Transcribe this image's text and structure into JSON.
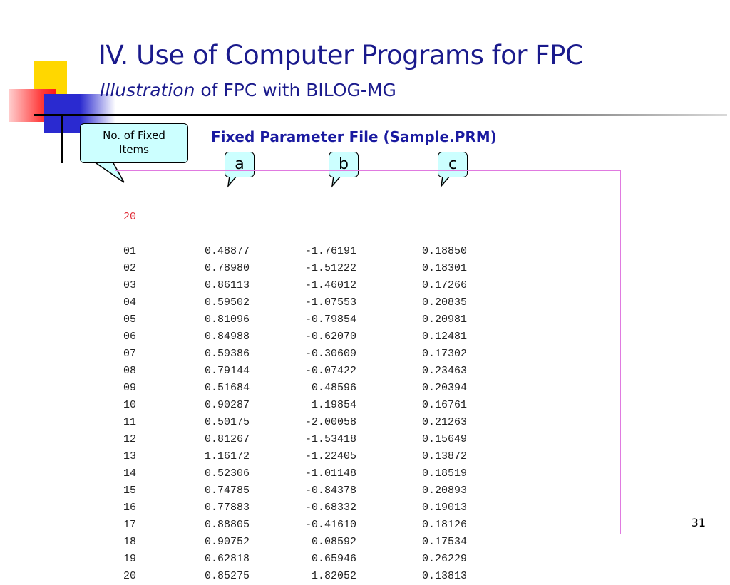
{
  "slide": {
    "title": "IV. Use of Computer Programs for FPC",
    "subtitle_prefix": "Illustration",
    "subtitle_rest": " of FPC with BILOG-MG",
    "page_number": "31",
    "accent_color": "#1a1a8c"
  },
  "file_heading": "Fixed Parameter File (Sample.PRM)",
  "callouts": {
    "fixed_items_line1": "No. of Fixed",
    "fixed_items_line2": "Items",
    "a": "a",
    "b": "b",
    "c": "c"
  },
  "prm": {
    "count": "20",
    "rows": [
      {
        "id": "01",
        "a": "0.48877",
        "b": "-1.76191",
        "c": "0.18850"
      },
      {
        "id": "02",
        "a": "0.78980",
        "b": "-1.51222",
        "c": "0.18301"
      },
      {
        "id": "03",
        "a": "0.86113",
        "b": "-1.46012",
        "c": "0.17266"
      },
      {
        "id": "04",
        "a": "0.59502",
        "b": "-1.07553",
        "c": "0.20835"
      },
      {
        "id": "05",
        "a": "0.81096",
        "b": "-0.79854",
        "c": "0.20981"
      },
      {
        "id": "06",
        "a": "0.84988",
        "b": "-0.62070",
        "c": "0.12481"
      },
      {
        "id": "07",
        "a": "0.59386",
        "b": "-0.30609",
        "c": "0.17302"
      },
      {
        "id": "08",
        "a": "0.79144",
        "b": "-0.07422",
        "c": "0.23463"
      },
      {
        "id": "09",
        "a": "0.51684",
        "b": "0.48596",
        "c": "0.20394"
      },
      {
        "id": "10",
        "a": "0.90287",
        "b": "1.19854",
        "c": "0.16761"
      },
      {
        "id": "11",
        "a": "0.50175",
        "b": "-2.00058",
        "c": "0.21263"
      },
      {
        "id": "12",
        "a": "0.81267",
        "b": "-1.53418",
        "c": "0.15649"
      },
      {
        "id": "13",
        "a": "1.16172",
        "b": "-1.22405",
        "c": "0.13872"
      },
      {
        "id": "14",
        "a": "0.52306",
        "b": "-1.01148",
        "c": "0.18519"
      },
      {
        "id": "15",
        "a": "0.74785",
        "b": "-0.84378",
        "c": "0.20893"
      },
      {
        "id": "16",
        "a": "0.77883",
        "b": "-0.68332",
        "c": "0.19013"
      },
      {
        "id": "17",
        "a": "0.88805",
        "b": "-0.41610",
        "c": "0.18126"
      },
      {
        "id": "18",
        "a": "0.90752",
        "b": "0.08592",
        "c": "0.17534"
      },
      {
        "id": "19",
        "a": "0.62818",
        "b": "0.65946",
        "c": "0.26229"
      },
      {
        "id": "20",
        "a": "0.85275",
        "b": "1.82052",
        "c": "0.13813"
      }
    ]
  }
}
